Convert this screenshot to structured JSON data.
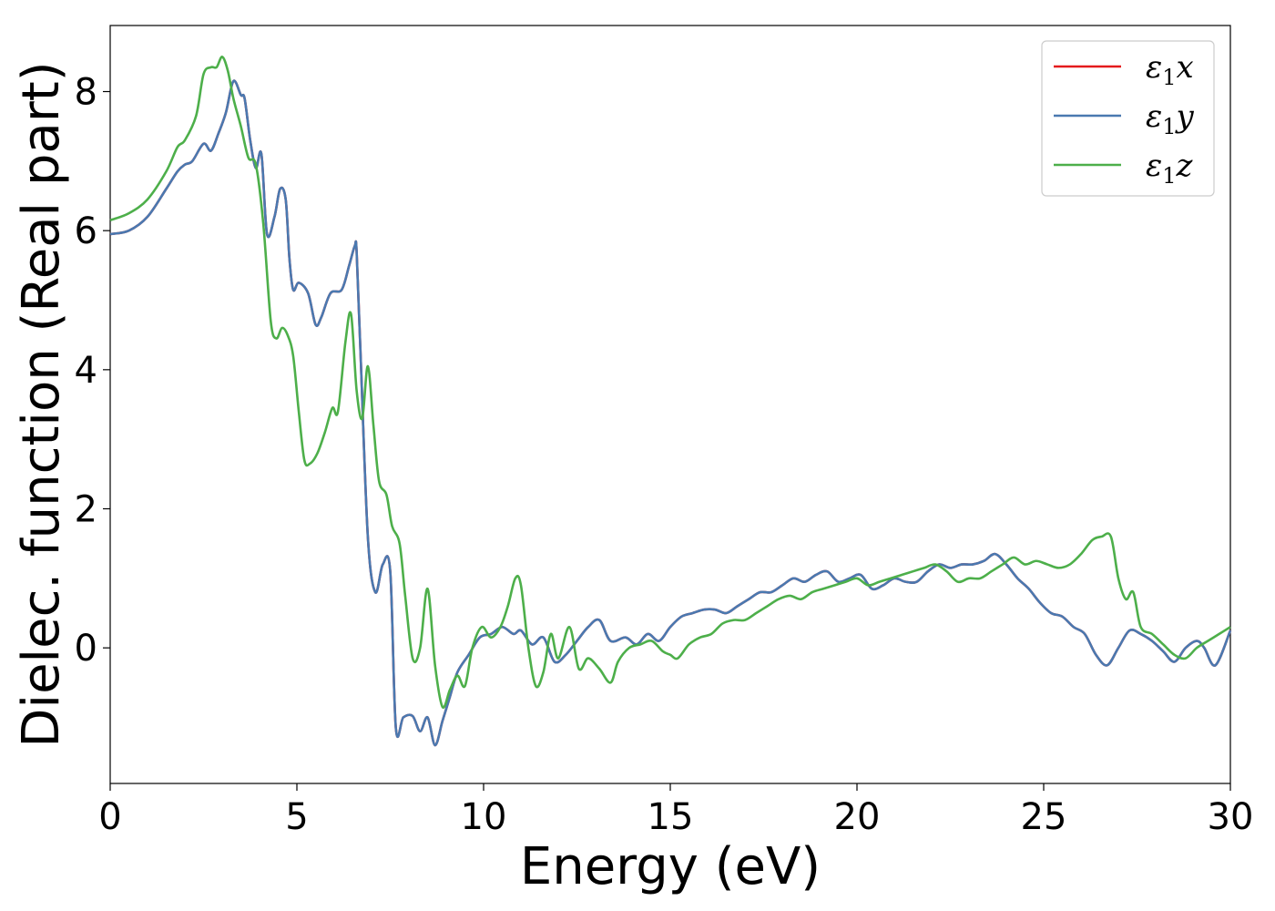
{
  "chart_data": {
    "type": "line",
    "title": "",
    "xlabel": "Energy (eV)",
    "ylabel": "Dielec. function (Real part)",
    "xlim": [
      0,
      30
    ],
    "ylim": [
      -1.95,
      8.95
    ],
    "xticks": [
      0,
      5,
      10,
      15,
      20,
      25,
      30
    ],
    "yticks": [
      0,
      2,
      4,
      6,
      8
    ],
    "grid": false,
    "legend_position": "top-right",
    "series": [
      {
        "name": "ε1x",
        "legend_symbol": "ε",
        "legend_sub": "1",
        "legend_suffix": "x",
        "color": "#e41a1c",
        "x": [
          0,
          0.5,
          1.0,
          1.5,
          1.8,
          2.0,
          2.2,
          2.5,
          2.7,
          2.9,
          3.1,
          3.3,
          3.5,
          3.6,
          3.75,
          3.9,
          4.05,
          4.2,
          4.4,
          4.55,
          4.7,
          4.8,
          4.9,
          5.05,
          5.3,
          5.5,
          5.65,
          5.9,
          6.2,
          6.4,
          6.55,
          6.6,
          6.7,
          6.9,
          7.1,
          7.3,
          7.5,
          7.65,
          7.85,
          8.1,
          8.3,
          8.5,
          8.7,
          8.9,
          9.1,
          9.3,
          9.6,
          9.9,
          10.2,
          10.5,
          10.8,
          11.0,
          11.3,
          11.6,
          11.9,
          12.2,
          12.5,
          12.8,
          13.1,
          13.4,
          13.8,
          14.1,
          14.4,
          14.7,
          15.0,
          15.3,
          15.6,
          15.9,
          16.2,
          16.5,
          16.8,
          17.1,
          17.4,
          17.7,
          18.0,
          18.3,
          18.6,
          18.9,
          19.2,
          19.5,
          19.8,
          20.1,
          20.4,
          20.7,
          21.0,
          21.3,
          21.6,
          21.9,
          22.2,
          22.5,
          22.8,
          23.1,
          23.4,
          23.7,
          24.0,
          24.3,
          24.6,
          24.9,
          25.2,
          25.5,
          25.8,
          26.1,
          26.4,
          26.7,
          27.0,
          27.3,
          27.6,
          27.9,
          28.2,
          28.5,
          28.8,
          29.1,
          29.3,
          29.6,
          30.0
        ],
        "values": [
          5.95,
          6.0,
          6.2,
          6.6,
          6.85,
          6.95,
          7.0,
          7.25,
          7.15,
          7.4,
          7.7,
          8.15,
          7.95,
          7.9,
          7.3,
          6.9,
          7.1,
          5.95,
          6.2,
          6.6,
          6.45,
          5.6,
          5.15,
          5.25,
          5.1,
          4.65,
          4.75,
          5.1,
          5.15,
          5.5,
          5.78,
          5.7,
          4.3,
          1.6,
          0.8,
          1.2,
          1.1,
          -1.15,
          -1.0,
          -0.98,
          -1.2,
          -1.0,
          -1.4,
          -1.05,
          -0.7,
          -0.35,
          -0.1,
          0.15,
          0.2,
          0.3,
          0.2,
          0.25,
          0.05,
          0.15,
          -0.2,
          -0.1,
          0.1,
          0.3,
          0.4,
          0.1,
          0.15,
          0.05,
          0.2,
          0.1,
          0.3,
          0.45,
          0.5,
          0.55,
          0.55,
          0.5,
          0.6,
          0.7,
          0.8,
          0.8,
          0.9,
          1.0,
          0.95,
          1.05,
          1.1,
          0.95,
          1.0,
          1.05,
          0.85,
          0.9,
          1.0,
          0.95,
          0.95,
          1.1,
          1.2,
          1.15,
          1.2,
          1.2,
          1.25,
          1.35,
          1.2,
          1.0,
          0.85,
          0.65,
          0.5,
          0.45,
          0.3,
          0.2,
          -0.1,
          -0.25,
          0.0,
          0.25,
          0.2,
          0.1,
          -0.05,
          -0.2,
          0.0,
          0.1,
          0.0,
          -0.25,
          0.25
        ]
      },
      {
        "name": "ε1y",
        "legend_symbol": "ε",
        "legend_sub": "1",
        "legend_suffix": "y",
        "color": "#4a79b0",
        "x": [
          0,
          0.5,
          1.0,
          1.5,
          1.8,
          2.0,
          2.2,
          2.5,
          2.7,
          2.9,
          3.1,
          3.3,
          3.5,
          3.6,
          3.75,
          3.9,
          4.05,
          4.2,
          4.4,
          4.55,
          4.7,
          4.8,
          4.9,
          5.05,
          5.3,
          5.5,
          5.65,
          5.9,
          6.2,
          6.4,
          6.55,
          6.6,
          6.7,
          6.9,
          7.1,
          7.3,
          7.5,
          7.65,
          7.85,
          8.1,
          8.3,
          8.5,
          8.7,
          8.9,
          9.1,
          9.3,
          9.6,
          9.9,
          10.2,
          10.5,
          10.8,
          11.0,
          11.3,
          11.6,
          11.9,
          12.2,
          12.5,
          12.8,
          13.1,
          13.4,
          13.8,
          14.1,
          14.4,
          14.7,
          15.0,
          15.3,
          15.6,
          15.9,
          16.2,
          16.5,
          16.8,
          17.1,
          17.4,
          17.7,
          18.0,
          18.3,
          18.6,
          18.9,
          19.2,
          19.5,
          19.8,
          20.1,
          20.4,
          20.7,
          21.0,
          21.3,
          21.6,
          21.9,
          22.2,
          22.5,
          22.8,
          23.1,
          23.4,
          23.7,
          24.0,
          24.3,
          24.6,
          24.9,
          25.2,
          25.5,
          25.8,
          26.1,
          26.4,
          26.7,
          27.0,
          27.3,
          27.6,
          27.9,
          28.2,
          28.5,
          28.8,
          29.1,
          29.3,
          29.6,
          30.0
        ],
        "values": [
          5.95,
          6.0,
          6.2,
          6.6,
          6.85,
          6.95,
          7.0,
          7.25,
          7.15,
          7.4,
          7.7,
          8.15,
          7.95,
          7.9,
          7.3,
          6.9,
          7.1,
          5.95,
          6.2,
          6.6,
          6.45,
          5.6,
          5.15,
          5.25,
          5.1,
          4.65,
          4.75,
          5.1,
          5.15,
          5.5,
          5.78,
          5.7,
          4.3,
          1.6,
          0.8,
          1.2,
          1.1,
          -1.15,
          -1.0,
          -0.98,
          -1.2,
          -1.0,
          -1.4,
          -1.05,
          -0.7,
          -0.35,
          -0.1,
          0.15,
          0.2,
          0.3,
          0.2,
          0.25,
          0.05,
          0.15,
          -0.2,
          -0.1,
          0.1,
          0.3,
          0.4,
          0.1,
          0.15,
          0.05,
          0.2,
          0.1,
          0.3,
          0.45,
          0.5,
          0.55,
          0.55,
          0.5,
          0.6,
          0.7,
          0.8,
          0.8,
          0.9,
          1.0,
          0.95,
          1.05,
          1.1,
          0.95,
          1.0,
          1.05,
          0.85,
          0.9,
          1.0,
          0.95,
          0.95,
          1.1,
          1.2,
          1.15,
          1.2,
          1.2,
          1.25,
          1.35,
          1.2,
          1.0,
          0.85,
          0.65,
          0.5,
          0.45,
          0.3,
          0.2,
          -0.1,
          -0.25,
          0.0,
          0.25,
          0.2,
          0.1,
          -0.05,
          -0.2,
          0.0,
          0.1,
          0.0,
          -0.25,
          0.25
        ]
      },
      {
        "name": "ε1z",
        "legend_symbol": "ε",
        "legend_sub": "1",
        "legend_suffix": "z",
        "color": "#4daf4a",
        "x": [
          0,
          0.5,
          1.0,
          1.5,
          1.8,
          2.0,
          2.3,
          2.5,
          2.7,
          2.85,
          3.0,
          3.15,
          3.3,
          3.5,
          3.7,
          3.9,
          4.1,
          4.3,
          4.45,
          4.6,
          4.75,
          4.9,
          5.05,
          5.2,
          5.35,
          5.55,
          5.75,
          5.95,
          6.1,
          6.3,
          6.45,
          6.6,
          6.75,
          6.9,
          7.05,
          7.2,
          7.4,
          7.55,
          7.75,
          7.9,
          8.1,
          8.3,
          8.5,
          8.7,
          8.9,
          9.1,
          9.3,
          9.5,
          9.7,
          9.95,
          10.2,
          10.45,
          10.65,
          10.85,
          11.0,
          11.2,
          11.4,
          11.6,
          11.8,
          12.0,
          12.3,
          12.55,
          12.8,
          13.1,
          13.4,
          13.6,
          13.9,
          14.2,
          14.5,
          14.8,
          15.0,
          15.2,
          15.5,
          15.8,
          16.1,
          16.4,
          16.7,
          17.0,
          17.3,
          17.6,
          17.9,
          18.2,
          18.5,
          18.8,
          19.1,
          19.4,
          19.7,
          20.0,
          20.3,
          20.6,
          20.9,
          21.2,
          21.5,
          21.8,
          22.1,
          22.4,
          22.7,
          23.0,
          23.3,
          23.6,
          23.9,
          24.2,
          24.5,
          24.8,
          25.1,
          25.4,
          25.7,
          26.0,
          26.3,
          26.55,
          26.8,
          27.0,
          27.2,
          27.4,
          27.6,
          27.9,
          28.2,
          28.5,
          28.8,
          29.1,
          29.4,
          29.7,
          30.0
        ],
        "values": [
          6.15,
          6.25,
          6.45,
          6.85,
          7.2,
          7.3,
          7.65,
          8.25,
          8.35,
          8.35,
          8.5,
          8.3,
          7.9,
          7.5,
          7.05,
          6.95,
          6.1,
          4.7,
          4.45,
          4.6,
          4.5,
          4.2,
          3.4,
          2.7,
          2.65,
          2.8,
          3.1,
          3.45,
          3.4,
          4.4,
          4.8,
          3.7,
          3.3,
          4.05,
          3.2,
          2.4,
          2.2,
          1.75,
          1.5,
          0.75,
          -0.15,
          0.0,
          0.85,
          -0.25,
          -0.85,
          -0.6,
          -0.4,
          -0.55,
          0.0,
          0.3,
          0.15,
          0.3,
          0.6,
          1.0,
          0.9,
          0.0,
          -0.55,
          -0.35,
          0.2,
          -0.15,
          0.3,
          -0.3,
          -0.15,
          -0.3,
          -0.5,
          -0.2,
          0.0,
          0.05,
          0.1,
          -0.05,
          -0.1,
          -0.15,
          0.05,
          0.15,
          0.2,
          0.35,
          0.4,
          0.4,
          0.5,
          0.6,
          0.7,
          0.75,
          0.7,
          0.8,
          0.85,
          0.9,
          0.95,
          1.0,
          0.9,
          0.95,
          1.0,
          1.05,
          1.1,
          1.15,
          1.2,
          1.1,
          0.95,
          1.0,
          1.0,
          1.1,
          1.2,
          1.3,
          1.2,
          1.25,
          1.2,
          1.15,
          1.2,
          1.35,
          1.55,
          1.6,
          1.6,
          1.0,
          0.7,
          0.8,
          0.3,
          0.2,
          0.05,
          -0.1,
          -0.15,
          0.0,
          0.1,
          0.2,
          0.3
        ]
      }
    ]
  }
}
